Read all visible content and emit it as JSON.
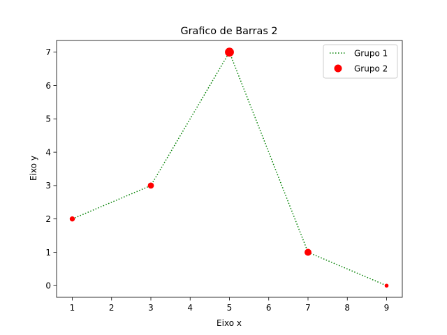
{
  "chart_data": {
    "type": "line",
    "title": "Grafico de Barras 2",
    "xlabel": "Eixo x",
    "ylabel": "Eixo y",
    "xlim": [
      0.6,
      9.4
    ],
    "ylim": [
      -0.35,
      7.35
    ],
    "xticks": [
      1,
      2,
      3,
      4,
      5,
      6,
      7,
      8,
      9
    ],
    "yticks": [
      0,
      1,
      2,
      3,
      4,
      5,
      6,
      7
    ],
    "grid": false,
    "legend_position": "top-right",
    "series": [
      {
        "name": "Grupo 1",
        "kind": "line",
        "style": "dotted",
        "color": "#008000",
        "x": [
          1,
          3,
          5,
          7,
          9
        ],
        "y": [
          2,
          3,
          7,
          1,
          0
        ]
      },
      {
        "name": "Grupo 2",
        "kind": "scatter",
        "color": "#ff0000",
        "x": [
          1,
          3,
          5,
          7,
          9
        ],
        "y": [
          2,
          3,
          7,
          1,
          0
        ],
        "sizes": [
          2,
          3,
          7,
          4,
          1
        ]
      }
    ]
  }
}
